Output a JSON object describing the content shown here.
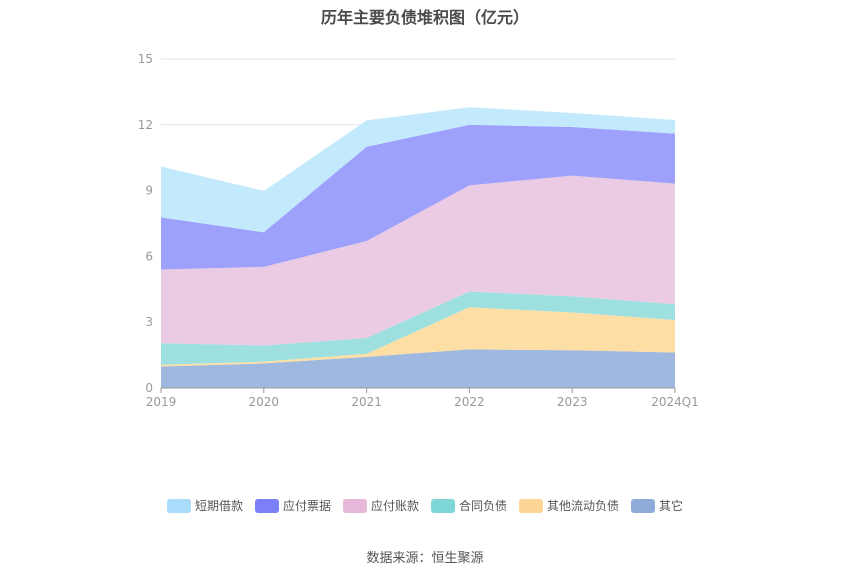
{
  "chart_data": {
    "type": "area",
    "stacked": true,
    "title": "历年主要负债堆积图（亿元）",
    "categories": [
      "2019",
      "2020",
      "2021",
      "2022",
      "2023",
      "2024Q1"
    ],
    "ylim": [
      0,
      15
    ],
    "yticks": [
      0,
      3,
      6,
      9,
      12,
      15
    ],
    "grid": true,
    "legend_position": "bottom",
    "series": [
      {
        "name": "其它",
        "color": "#9fb8e0",
        "values": [
          0.98,
          1.12,
          1.42,
          1.76,
          1.72,
          1.62
        ]
      },
      {
        "name": "其他流动负债",
        "color": "#fddfa5",
        "values": [
          0.08,
          0.08,
          0.14,
          1.92,
          1.72,
          1.48
        ]
      },
      {
        "name": "合同负债",
        "color": "#9ee0e0",
        "values": [
          0.98,
          0.74,
          0.72,
          0.72,
          0.74,
          0.72
        ]
      },
      {
        "name": "应付账款",
        "color": "#eacbe3",
        "values": [
          3.36,
          3.58,
          4.42,
          4.84,
          5.5,
          5.5
        ]
      },
      {
        "name": "应付票据",
        "color": "#9da1fb",
        "values": [
          2.38,
          1.58,
          4.3,
          2.76,
          2.22,
          2.28
        ]
      },
      {
        "name": "短期借款",
        "color": "#c3e9fc",
        "values": [
          2.32,
          1.88,
          1.2,
          0.8,
          0.64,
          0.62
        ]
      }
    ]
  },
  "legend": [
    {
      "label": "短期借款",
      "color": "#a8dcfa"
    },
    {
      "label": "应付票据",
      "color": "#7b7ff8"
    },
    {
      "label": "应付账款",
      "color": "#e8b8db"
    },
    {
      "label": "合同负债",
      "color": "#7fd6d6"
    },
    {
      "label": "其他流动负债",
      "color": "#fcd597"
    },
    {
      "label": "其它",
      "color": "#8eabd9"
    }
  ],
  "source": "数据来源：恒生聚源"
}
